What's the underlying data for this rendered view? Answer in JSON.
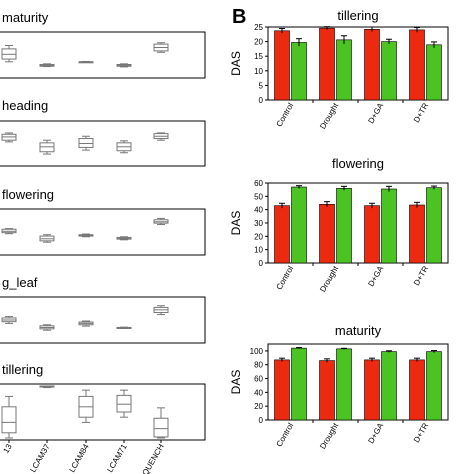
{
  "panel_labels": {
    "b": "B"
  },
  "colors": {
    "red": "#ec2a0f",
    "green": "#4bc322",
    "box": "#777777"
  },
  "chart_data": [
    {
      "type": "box",
      "panel": "A",
      "title": "maturity",
      "categories": [
        "",
        "LCAM37",
        "LCAM84",
        "LCAM71",
        "QUENCH"
      ],
      "boxes": [
        {
          "min": 0.3,
          "q1": 0.38,
          "median": 0.52,
          "q3": 0.68,
          "max": 0.78
        },
        {
          "min": 0.16,
          "q1": 0.17,
          "median": 0.195,
          "q3": 0.22,
          "max": 0.24
        },
        {
          "min": 0.3,
          "q1": 0.3,
          "median": 0.3,
          "q3": 0.3,
          "max": 0.31
        },
        {
          "min": 0.15,
          "q1": 0.17,
          "median": 0.19,
          "q3": 0.22,
          "max": 0.24
        },
        {
          "min": 0.58,
          "q1": 0.62,
          "median": 0.72,
          "q3": 0.82,
          "max": 0.86
        }
      ]
    },
    {
      "type": "box",
      "panel": "A",
      "title": "heading",
      "categories": [
        "",
        "LCAM37",
        "LCAM84",
        "LCAM71",
        "QUENCH"
      ],
      "boxes": [
        {
          "min": 0.55,
          "q1": 0.6,
          "median": 0.7,
          "q3": 0.78,
          "max": 0.82
        },
        {
          "min": 0.18,
          "q1": 0.25,
          "median": 0.4,
          "q3": 0.52,
          "max": 0.6
        },
        {
          "min": 0.3,
          "q1": 0.38,
          "median": 0.5,
          "q3": 0.65,
          "max": 0.72
        },
        {
          "min": 0.22,
          "q1": 0.28,
          "median": 0.4,
          "q3": 0.52,
          "max": 0.58
        },
        {
          "min": 0.6,
          "q1": 0.65,
          "median": 0.72,
          "q3": 0.8,
          "max": 0.82
        }
      ]
    },
    {
      "type": "box",
      "panel": "A",
      "title": "flowering",
      "categories": [
        "",
        "LCAM37",
        "LCAM84",
        "LCAM71",
        "QUENCH"
      ],
      "boxes": [
        {
          "min": 0.45,
          "q1": 0.48,
          "median": 0.52,
          "q3": 0.58,
          "max": 0.6
        },
        {
          "min": 0.2,
          "q1": 0.24,
          "median": 0.3,
          "q3": 0.38,
          "max": 0.42
        },
        {
          "min": 0.36,
          "q1": 0.38,
          "median": 0.4,
          "q3": 0.42,
          "max": 0.44
        },
        {
          "min": 0.27,
          "q1": 0.29,
          "median": 0.31,
          "q3": 0.34,
          "max": 0.36
        },
        {
          "min": 0.72,
          "q1": 0.76,
          "median": 0.8,
          "q3": 0.86,
          "max": 0.9
        }
      ]
    },
    {
      "type": "box",
      "panel": "A",
      "title": "g_leaf",
      "categories": [
        "",
        "LCAM37",
        "LCAM84",
        "LCAM71",
        "QUENCH"
      ],
      "boxes": [
        {
          "min": 0.4,
          "q1": 0.45,
          "median": 0.5,
          "q3": 0.56,
          "max": 0.6
        },
        {
          "min": 0.2,
          "q1": 0.24,
          "median": 0.28,
          "q3": 0.33,
          "max": 0.36
        },
        {
          "min": 0.32,
          "q1": 0.36,
          "median": 0.4,
          "q3": 0.44,
          "max": 0.47
        },
        {
          "min": 0.25,
          "q1": 0.26,
          "median": 0.27,
          "q3": 0.28,
          "max": 0.29
        },
        {
          "min": 0.66,
          "q1": 0.72,
          "median": 0.8,
          "q3": 0.87,
          "max": 0.92
        }
      ]
    },
    {
      "type": "box",
      "panel": "A",
      "title": "tillering",
      "categories": [
        "13",
        "LCAM37",
        "LCAM84",
        "LCAM71",
        "QUENCH"
      ],
      "boxes": [
        {
          "min": 0.0,
          "q1": 0.1,
          "median": 0.3,
          "q3": 0.6,
          "max": 0.8
        },
        {
          "min": 0.97,
          "q1": 0.98,
          "median": 0.99,
          "q3": 1.0,
          "max": 1.0
        },
        {
          "min": 0.3,
          "q1": 0.4,
          "median": 0.6,
          "q3": 0.8,
          "max": 0.92
        },
        {
          "min": 0.4,
          "q1": 0.5,
          "median": 0.65,
          "q3": 0.82,
          "max": 0.92
        },
        {
          "min": 0.0,
          "q1": 0.02,
          "median": 0.18,
          "q3": 0.38,
          "max": 0.58
        }
      ]
    },
    {
      "type": "bar",
      "panel": "B",
      "title": "tillering",
      "ylabel": "DAS",
      "ylim": [
        0,
        25
      ],
      "yticks": [
        0,
        5,
        10,
        15,
        20,
        25
      ],
      "categories": [
        "Control",
        "Drought",
        "D+GA",
        "D+TR"
      ],
      "series": [
        {
          "color": "red",
          "values": [
            23.7,
            24.6,
            24.2,
            24.0
          ],
          "errors": [
            0.8,
            0.5,
            0.8,
            0.8
          ]
        },
        {
          "color": "green",
          "values": [
            19.7,
            20.6,
            20.0,
            18.9
          ],
          "errors": [
            1.3,
            1.4,
            0.8,
            1.0
          ]
        }
      ]
    },
    {
      "type": "bar",
      "panel": "B",
      "title": "flowering",
      "ylabel": "DAS",
      "ylim": [
        0,
        60
      ],
      "yticks": [
        0,
        10,
        20,
        30,
        40,
        50,
        60
      ],
      "categories": [
        "Control",
        "Drought",
        "D+GA",
        "D+TR"
      ],
      "series": [
        {
          "color": "red",
          "values": [
            43,
            44,
            43,
            43.5
          ],
          "errors": [
            1.8,
            2.0,
            1.8,
            2.0
          ]
        },
        {
          "color": "green",
          "values": [
            57,
            56,
            55.5,
            56.5
          ],
          "errors": [
            1.0,
            1.5,
            2.0,
            1.2
          ]
        }
      ]
    },
    {
      "type": "bar",
      "panel": "B",
      "title": "maturity",
      "ylabel": "DAS",
      "ylim": [
        0,
        110
      ],
      "yticks": [
        0,
        20,
        40,
        60,
        80,
        100
      ],
      "categories": [
        "Control",
        "Drought",
        "D+GA",
        "D+TR"
      ],
      "series": [
        {
          "color": "red",
          "values": [
            87,
            86,
            87,
            87
          ],
          "errors": [
            2.5,
            2.5,
            2.5,
            2.5
          ]
        },
        {
          "color": "green",
          "values": [
            104,
            103,
            99,
            99
          ],
          "errors": [
            0.8,
            0.8,
            1.2,
            1.5
          ]
        }
      ]
    }
  ]
}
